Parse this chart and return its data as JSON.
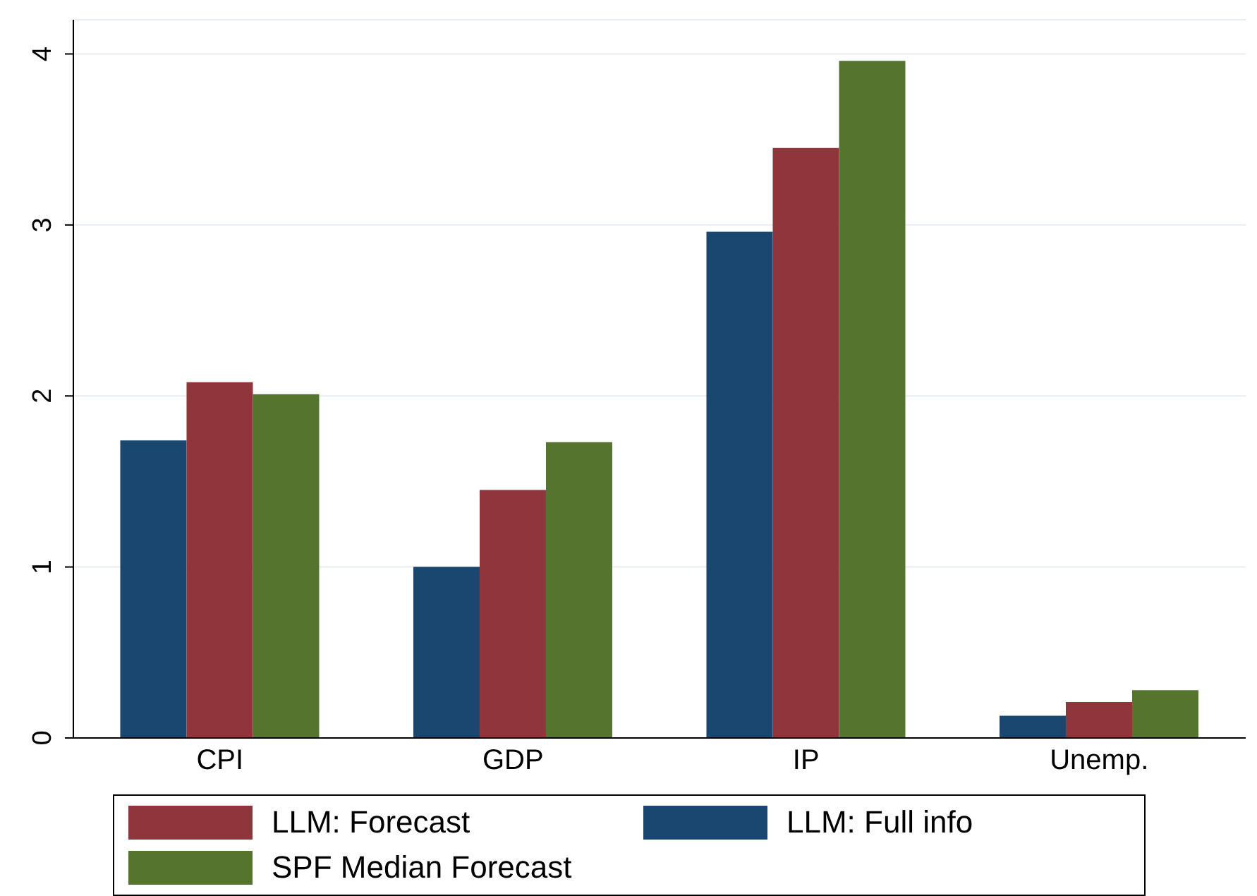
{
  "chart_data": {
    "type": "bar",
    "categories": [
      "CPI",
      "GDP",
      "IP",
      "Unemp."
    ],
    "series": [
      {
        "name": "LLM: Full info",
        "color": "#1a476f",
        "values": [
          1.74,
          1.0,
          2.96,
          0.13
        ]
      },
      {
        "name": "LLM: Forecast",
        "color": "#90353b",
        "values": [
          2.08,
          1.45,
          3.45,
          0.21
        ]
      },
      {
        "name": "SPF Median Forecast",
        "color": "#55752f",
        "values": [
          2.01,
          1.73,
          3.96,
          0.28
        ]
      }
    ],
    "ylim": [
      0,
      4.2
    ],
    "yticks": [
      0,
      1,
      2,
      3,
      4
    ],
    "grid": "y",
    "legend": "bottom"
  }
}
